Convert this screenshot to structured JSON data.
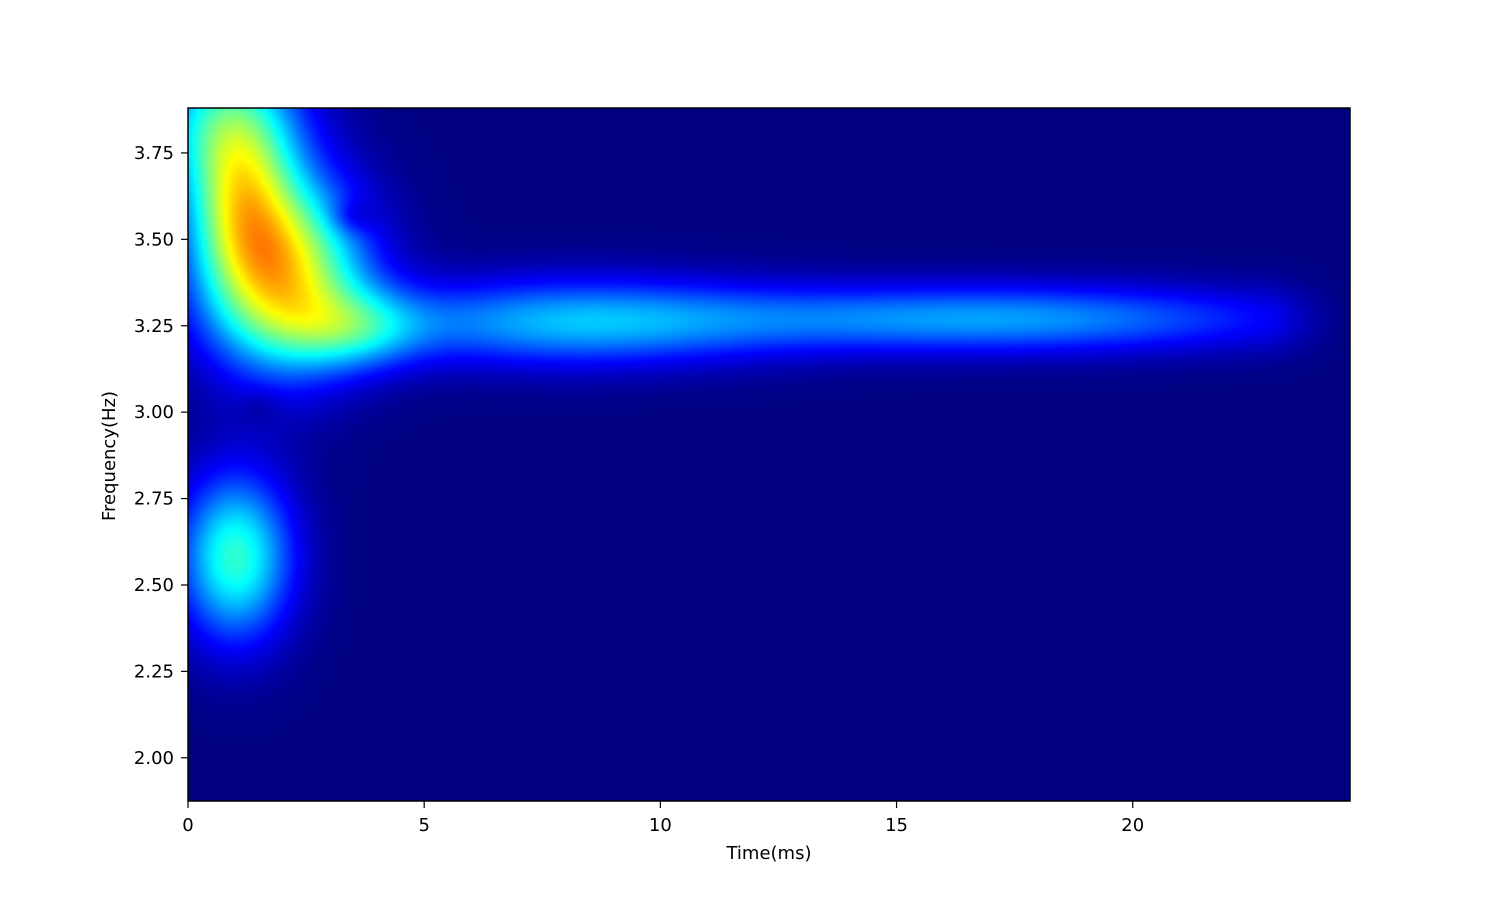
{
  "chart_data": {
    "type": "heatmap",
    "xlabel": "Time(ms)",
    "ylabel": "Frequency(Hz)",
    "xlim": [
      0,
      24.6
    ],
    "ylim": [
      1.875,
      3.88
    ],
    "x_ticks": [
      {
        "value": 0,
        "label": "0"
      },
      {
        "value": 5,
        "label": "5"
      },
      {
        "value": 10,
        "label": "10"
      },
      {
        "value": 15,
        "label": "15"
      },
      {
        "value": 20,
        "label": "20"
      }
    ],
    "y_ticks": [
      {
        "value": 2.0,
        "label": "2.00"
      },
      {
        "value": 2.25,
        "label": "2.25"
      },
      {
        "value": 2.5,
        "label": "2.50"
      },
      {
        "value": 2.75,
        "label": "2.75"
      },
      {
        "value": 3.0,
        "label": "3.00"
      },
      {
        "value": 3.25,
        "label": "3.25"
      },
      {
        "value": 3.5,
        "label": "3.50"
      },
      {
        "value": 3.75,
        "label": "3.75"
      }
    ],
    "colormap": "jet",
    "background_color": "#00007f",
    "energy_blobs": [
      {
        "time": 2.0,
        "freq": 3.4,
        "sigma_time": 1.2,
        "sigma_freq": 0.19,
        "intensity": 0.62
      },
      {
        "time": 1.1,
        "freq": 3.62,
        "sigma_time": 0.8,
        "sigma_freq": 0.17,
        "intensity": 0.35
      },
      {
        "time": 3.6,
        "freq": 3.24,
        "sigma_time": 1.0,
        "sigma_freq": 0.08,
        "intensity": 0.22
      },
      {
        "time": 1.0,
        "freq": 2.58,
        "sigma_time": 0.85,
        "sigma_freq": 0.17,
        "intensity": 0.42
      },
      {
        "time": 8.0,
        "freq": 3.26,
        "sigma_time": 3.0,
        "sigma_freq": 0.09,
        "intensity": 0.28
      },
      {
        "time": 17.0,
        "freq": 3.27,
        "sigma_time": 4.5,
        "sigma_freq": 0.07,
        "intensity": 0.28
      },
      {
        "time": 0.8,
        "freq": 3.85,
        "sigma_time": 1.1,
        "sigma_freq": 0.15,
        "intensity": 0.35
      }
    ],
    "dark_spots": [
      {
        "time": 1.5,
        "freq": 3.01
      },
      {
        "time": 3.6,
        "freq": 3.57
      },
      {
        "time": 4.1,
        "freq": 2.9
      },
      {
        "time": 4.0,
        "freq": 2.6
      },
      {
        "time": 5.7,
        "freq": 2.78
      },
      {
        "time": 7.5,
        "freq": 2.92
      },
      {
        "time": 10.4,
        "freq": 3.0
      },
      {
        "time": 19.7,
        "freq": 2.98
      }
    ]
  }
}
